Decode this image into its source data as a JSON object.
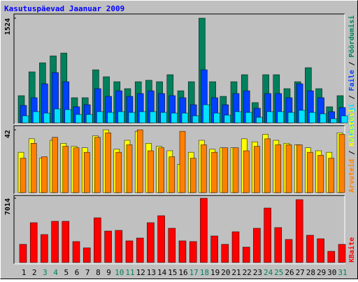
{
  "chart_data": {
    "type": "bar",
    "title": "Kasutuspäevad Jaanuar 2009",
    "categories": [
      "1",
      "2",
      "3",
      "4",
      "5",
      "6",
      "7",
      "8",
      "9",
      "10",
      "11",
      "12",
      "13",
      "14",
      "15",
      "16",
      "17",
      "18",
      "19",
      "20",
      "21",
      "22",
      "23",
      "24",
      "25",
      "26",
      "27",
      "28",
      "29",
      "30",
      "31"
    ],
    "category_colors": [
      "#000000",
      "#000000",
      "#00805c",
      "#00805c",
      "#000000",
      "#000000",
      "#000000",
      "#000000",
      "#000000",
      "#00805c",
      "#00805c",
      "#000000",
      "#000000",
      "#000000",
      "#000000",
      "#000000",
      "#00805c",
      "#00805c",
      "#000000",
      "#000000",
      "#000000",
      "#000000",
      "#000000",
      "#00805c",
      "#00805c",
      "#000000",
      "#000000",
      "#000000",
      "#000000",
      "#000000",
      "#00805c"
    ],
    "legend_separator": " / ",
    "panels": [
      {
        "ylim": [
          0,
          1524
        ],
        "yticks": [
          1524
        ],
        "series": [
          {
            "name": "Pöördumisi",
            "color": "#00805c",
            "values": [
              396,
              742,
              874,
              975,
              1016,
              366,
              366,
              772,
              671,
              599,
              498,
              599,
              620,
              599,
              701,
              467,
              599,
              1524,
              599,
              386,
              599,
              701,
              295,
              701,
              701,
              498,
              599,
              803,
              498,
              234,
              396
            ]
          },
          {
            "name": "Faile",
            "color": "#0040ff",
            "values": [
              254,
              366,
              569,
              732,
              599,
              234,
              264,
              498,
              386,
              467,
              386,
              427,
              467,
              427,
              396,
              366,
              264,
              772,
              366,
              264,
              427,
              467,
              213,
              427,
              427,
              366,
              569,
              467,
              366,
              163,
              224
            ]
          },
          {
            "name": "Lehekülgi",
            "color": "#00e0ff",
            "values": [
              102,
              163,
              142,
              203,
              193,
              122,
              122,
              163,
              152,
              163,
              152,
              163,
              163,
              152,
              142,
              142,
              102,
              264,
              142,
              112,
              163,
              152,
              81,
              163,
              163,
              152,
              183,
              152,
              132,
              61,
              102
            ]
          }
        ]
      },
      {
        "ylim": [
          0,
          42
        ],
        "yticks": [
          42
        ],
        "series": [
          {
            "name": "Külastusi",
            "color": "#ffff00",
            "values": [
              27,
              36,
              23,
              35,
              33,
              31,
              30,
              38,
              42,
              29,
              35,
              41,
              33,
              31,
              28,
              19,
              27,
              35,
              29,
              30,
              30,
              36,
              34,
              39,
              35,
              33,
              32,
              30,
              28,
              27,
              40
            ]
          },
          {
            "name": "Arvuteid",
            "color": "#ff8000",
            "values": [
              23,
              33,
              24,
              37,
              31,
              30,
              27,
              37,
              40,
              27,
              32,
              42,
              28,
              30,
              24,
              41,
              23,
              32,
              27,
              30,
              30,
              28,
              31,
              36,
              32,
              32,
              32,
              27,
              25,
              23,
              39
            ]
          }
        ]
      },
      {
        "ylim": [
          0,
          7014
        ],
        "yticks": [
          7014
        ],
        "series": [
          {
            "name": "KBaite",
            "color": "#ff0000",
            "values": [
              1982,
              4346,
              3050,
              4498,
              4498,
              2287,
              1601,
              4879,
              3431,
              3507,
              2363,
              2668,
              4346,
              5108,
              3736,
              2363,
              2287,
              7014,
              2897,
              1982,
              3355,
              1677,
              3736,
              5947,
              3812,
              2516,
              6862,
              2973,
              2592,
              1220,
              1982
            ]
          }
        ]
      }
    ]
  }
}
